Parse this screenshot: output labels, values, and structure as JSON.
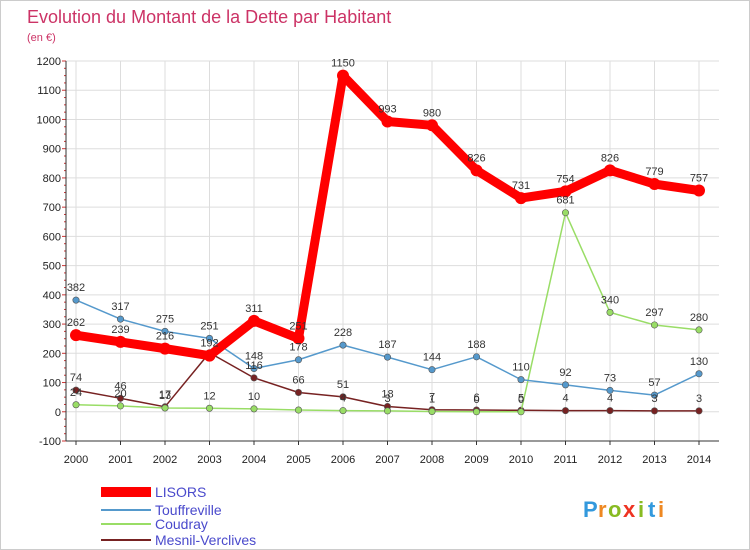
{
  "title": "Evolution du Montant de la Dette par Habitant",
  "subtitle": "(en €)",
  "brand": {
    "letters": [
      "P",
      "r",
      "o",
      "x",
      "i",
      "t",
      "i"
    ],
    "colors": [
      "#3399dd",
      "#ee8822",
      "#88bb22",
      "#ee3322",
      "#88bb22",
      "#3399dd",
      "#ee8822"
    ]
  },
  "chart_data": {
    "type": "line",
    "title": "Evolution du Montant de la Dette par Habitant",
    "subtitle": "(en €)",
    "x": [
      "2000",
      "2001",
      "2002",
      "2003",
      "2004",
      "2005",
      "2006",
      "2007",
      "2008",
      "2009",
      "2010",
      "2011",
      "2012",
      "2013",
      "2014"
    ],
    "ylim": [
      -100,
      1200
    ],
    "yticks": [
      -100,
      0,
      100,
      200,
      300,
      400,
      500,
      600,
      700,
      800,
      900,
      1000,
      1100,
      1200
    ],
    "grid": true,
    "legend_position": "bottom-left",
    "series": [
      {
        "name": "LISORS",
        "color": "#ff0000",
        "values": [
          262,
          239,
          216,
          192,
          311,
          251,
          1150,
          993,
          980,
          826,
          731,
          754,
          826,
          779,
          757
        ],
        "labels": [
          "262",
          "239",
          "216",
          "192",
          "311",
          "251",
          "1150",
          "993",
          "980",
          "826",
          "731",
          "754",
          "826",
          "779",
          "757"
        ]
      },
      {
        "name": "Touffreville",
        "color": "#5599cc",
        "values": [
          382,
          317,
          275,
          251,
          148,
          178,
          228,
          187,
          144,
          188,
          110,
          92,
          73,
          57,
          130
        ],
        "labels": [
          "382",
          "317",
          "275",
          "251",
          "148",
          "178",
          "228",
          "187",
          "144",
          "188",
          "110",
          "92",
          "73",
          "57",
          "130"
        ]
      },
      {
        "name": "Coudray",
        "color": "#99dd66",
        "values": [
          24,
          20,
          13,
          12,
          10,
          6,
          4,
          3,
          1,
          0,
          0,
          681,
          340,
          297,
          280
        ],
        "labels": [
          "24",
          "20",
          "13",
          "12",
          "10",
          "",
          "4",
          "3",
          "1",
          "0",
          "0",
          "681",
          "340",
          "297",
          "280"
        ]
      },
      {
        "name": "Mesnil-Verclives",
        "color": "#772222",
        "values": [
          74,
          46,
          17,
          202,
          116,
          66,
          51,
          18,
          7,
          6,
          5,
          4,
          4,
          3,
          3
        ],
        "labels": [
          "74",
          "46",
          "17",
          "",
          "116",
          "66",
          "51",
          "18",
          "7",
          "6",
          "5",
          "4",
          "4",
          "3",
          "3"
        ]
      }
    ]
  }
}
